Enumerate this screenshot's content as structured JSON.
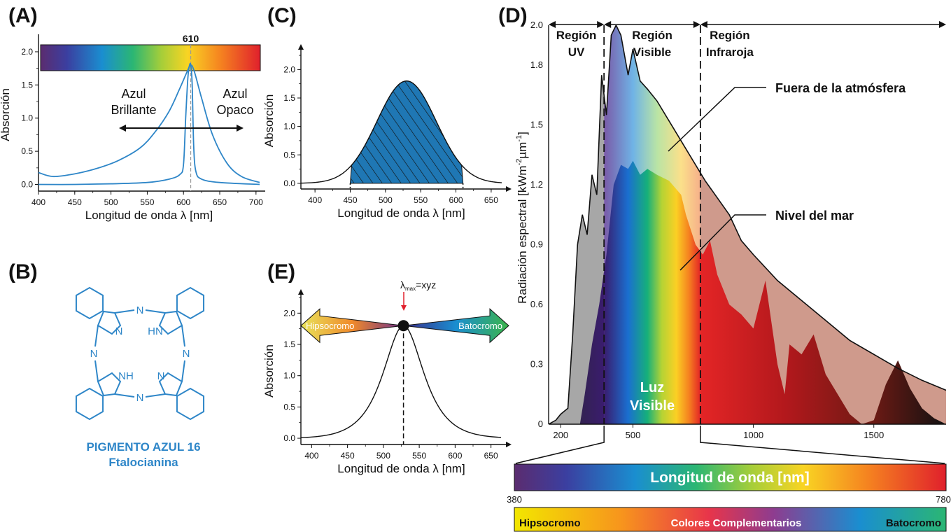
{
  "panels": {
    "A": "(A)",
    "B": "(B)",
    "C": "(C)",
    "D": "(D)",
    "E": "(E)"
  },
  "colors": {
    "curve_blue": "#2e86c8",
    "fill_blue": "#1f77b4",
    "uv_gray": "#9e9e9e",
    "pigment_blue": "#2e86c8"
  },
  "chart_data": [
    {
      "id": "A",
      "type": "line",
      "title": "",
      "xlabel": "Longitud de onda λ [nm]",
      "ylabel": "Absorción",
      "xlim": [
        400,
        705
      ],
      "ylim": [
        -0.1,
        2.2
      ],
      "xticks": [
        "400",
        "450",
        "500",
        "550",
        "600",
        "650",
        "700"
      ],
      "yticks": [
        "0.0",
        "0.5",
        "1.0",
        "1.5",
        "2.0"
      ],
      "marker_label": "610",
      "annotation_left": [
        "Azul",
        "Brillante"
      ],
      "annotation_right": [
        "Azul",
        "Opaco"
      ],
      "series": [
        {
          "values_x": [
            400,
            420,
            450,
            480,
            510,
            540,
            560,
            580,
            595,
            605,
            610,
            615,
            625,
            640,
            660,
            680,
            705
          ],
          "values_y": [
            0.18,
            0.12,
            0.16,
            0.24,
            0.36,
            0.55,
            0.78,
            1.1,
            1.45,
            1.7,
            1.8,
            1.7,
            1.3,
            0.75,
            0.32,
            0.12,
            0.03
          ]
        },
        {
          "values_x": [
            400,
            450,
            500,
            550,
            580,
            595,
            600,
            603,
            606,
            608,
            610,
            612,
            614,
            617,
            625,
            650,
            705
          ],
          "values_y": [
            0.0,
            0.0,
            0.01,
            0.03,
            0.08,
            0.15,
            0.3,
            1.0,
            1.6,
            1.78,
            1.8,
            1.5,
            0.6,
            0.2,
            0.08,
            0.03,
            0.0
          ]
        }
      ]
    },
    {
      "id": "C",
      "type": "area",
      "title": "",
      "xlabel": "Longitud de onda λ [nm]",
      "ylabel": "Absorción",
      "xlim": [
        380,
        665
      ],
      "ylim": [
        -0.1,
        2.3
      ],
      "xticks": [
        "400",
        "450",
        "500",
        "550",
        "600",
        "650"
      ],
      "yticks": [
        "0.0",
        "0.5",
        "1.0",
        "1.5",
        "2.0"
      ],
      "peak_x": 530,
      "peak_y": 1.8,
      "shade_from": 450,
      "shade_to": 610
    },
    {
      "id": "E",
      "type": "line",
      "title": "",
      "xlabel": "Longitud de onda λ [nm]",
      "ylabel": "Absorción",
      "xlim": [
        385,
        665
      ],
      "ylim": [
        -0.1,
        2.25
      ],
      "xticks": [
        "400",
        "450",
        "500",
        "550",
        "600",
        "650"
      ],
      "yticks": [
        "0.0",
        "0.5",
        "1.0",
        "1.5",
        "2.0"
      ],
      "peak_x": 528,
      "peak_y": 1.8,
      "lambda_label": "λ",
      "lambda_sub": "max",
      "lambda_value": "=xyz",
      "arrow_left": "Hipsocromo",
      "arrow_right": "Batocromo"
    },
    {
      "id": "D",
      "type": "area",
      "title": "",
      "xlabel": "",
      "ylabel": "Radiación espectral [kWm⁻²µm⁻¹]",
      "ylabel_main": "Radiación espectral [kWm",
      "ylabel_sup1": "-2",
      "ylabel_mid": "µm",
      "ylabel_sup2": "-1",
      "ylabel_end": "]",
      "xlim": [
        150,
        1800
      ],
      "ylim": [
        0,
        2.0
      ],
      "xticks": [
        "200",
        "500",
        "1000",
        "1500"
      ],
      "yticks": [
        "0",
        "0.3",
        "0.6",
        "0.9",
        "1.2",
        "1.5",
        "1.8",
        "2.0"
      ],
      "regions": [
        {
          "label": [
            "Región",
            "UV"
          ],
          "from": 150,
          "to": 380
        },
        {
          "label": [
            "Región",
            "Visible"
          ],
          "from": 380,
          "to": 780
        },
        {
          "label": [
            "Región",
            "Infraroja"
          ],
          "from": 780,
          "to": 1800
        }
      ],
      "series": [
        {
          "name": "Fuera de la atmósfera",
          "x": [
            150,
            180,
            200,
            230,
            250,
            270,
            290,
            310,
            330,
            350,
            370,
            390,
            410,
            430,
            450,
            480,
            500,
            530,
            560,
            600,
            650,
            700,
            750,
            800,
            900,
            950,
            1000,
            1100,
            1200,
            1300,
            1400,
            1500,
            1600,
            1700,
            1800
          ],
          "y": [
            0,
            0.02,
            0.05,
            0.08,
            0.45,
            0.9,
            1.05,
            0.95,
            1.25,
            1.15,
            1.75,
            1.55,
            1.95,
            2.0,
            1.95,
            1.75,
            1.88,
            1.72,
            1.68,
            1.62,
            1.52,
            1.42,
            1.32,
            1.22,
            1.05,
            0.92,
            0.85,
            0.72,
            0.62,
            0.52,
            0.42,
            0.35,
            0.28,
            0.22,
            0.17
          ]
        },
        {
          "name": "Nivel del mar",
          "x": [
            280,
            300,
            330,
            360,
            390,
            420,
            450,
            480,
            500,
            530,
            560,
            600,
            650,
            700,
            720,
            760,
            790,
            820,
            850,
            900,
            950,
            1000,
            1050,
            1100,
            1130,
            1150,
            1200,
            1250,
            1300,
            1350,
            1400,
            1450,
            1500,
            1550,
            1600,
            1650,
            1700,
            1750,
            1800
          ],
          "y": [
            0,
            0.15,
            0.4,
            0.6,
            0.85,
            1.2,
            1.3,
            1.28,
            1.32,
            1.25,
            1.28,
            1.25,
            1.22,
            1.15,
            1.05,
            0.9,
            0.85,
            0.92,
            0.75,
            0.6,
            0.55,
            0.48,
            0.72,
            0.3,
            0.15,
            0.4,
            0.35,
            0.45,
            0.25,
            0.15,
            0.05,
            0.0,
            0.02,
            0.2,
            0.32,
            0.18,
            0.08,
            0.03,
            0.0
          ]
        }
      ],
      "luz_visible": [
        "Luz",
        "Visible"
      ]
    }
  ],
  "pigment": {
    "name": "PIGMENTO AZUL 16",
    "subtitle": "Ftalocianina"
  },
  "bars": {
    "wavelength_label": "Longitud de onda [nm]",
    "min": "380",
    "max": "780",
    "complement_left": "Hipsocromo",
    "complement_center": "Colores Complementarios",
    "complement_right": "Batocromo"
  }
}
